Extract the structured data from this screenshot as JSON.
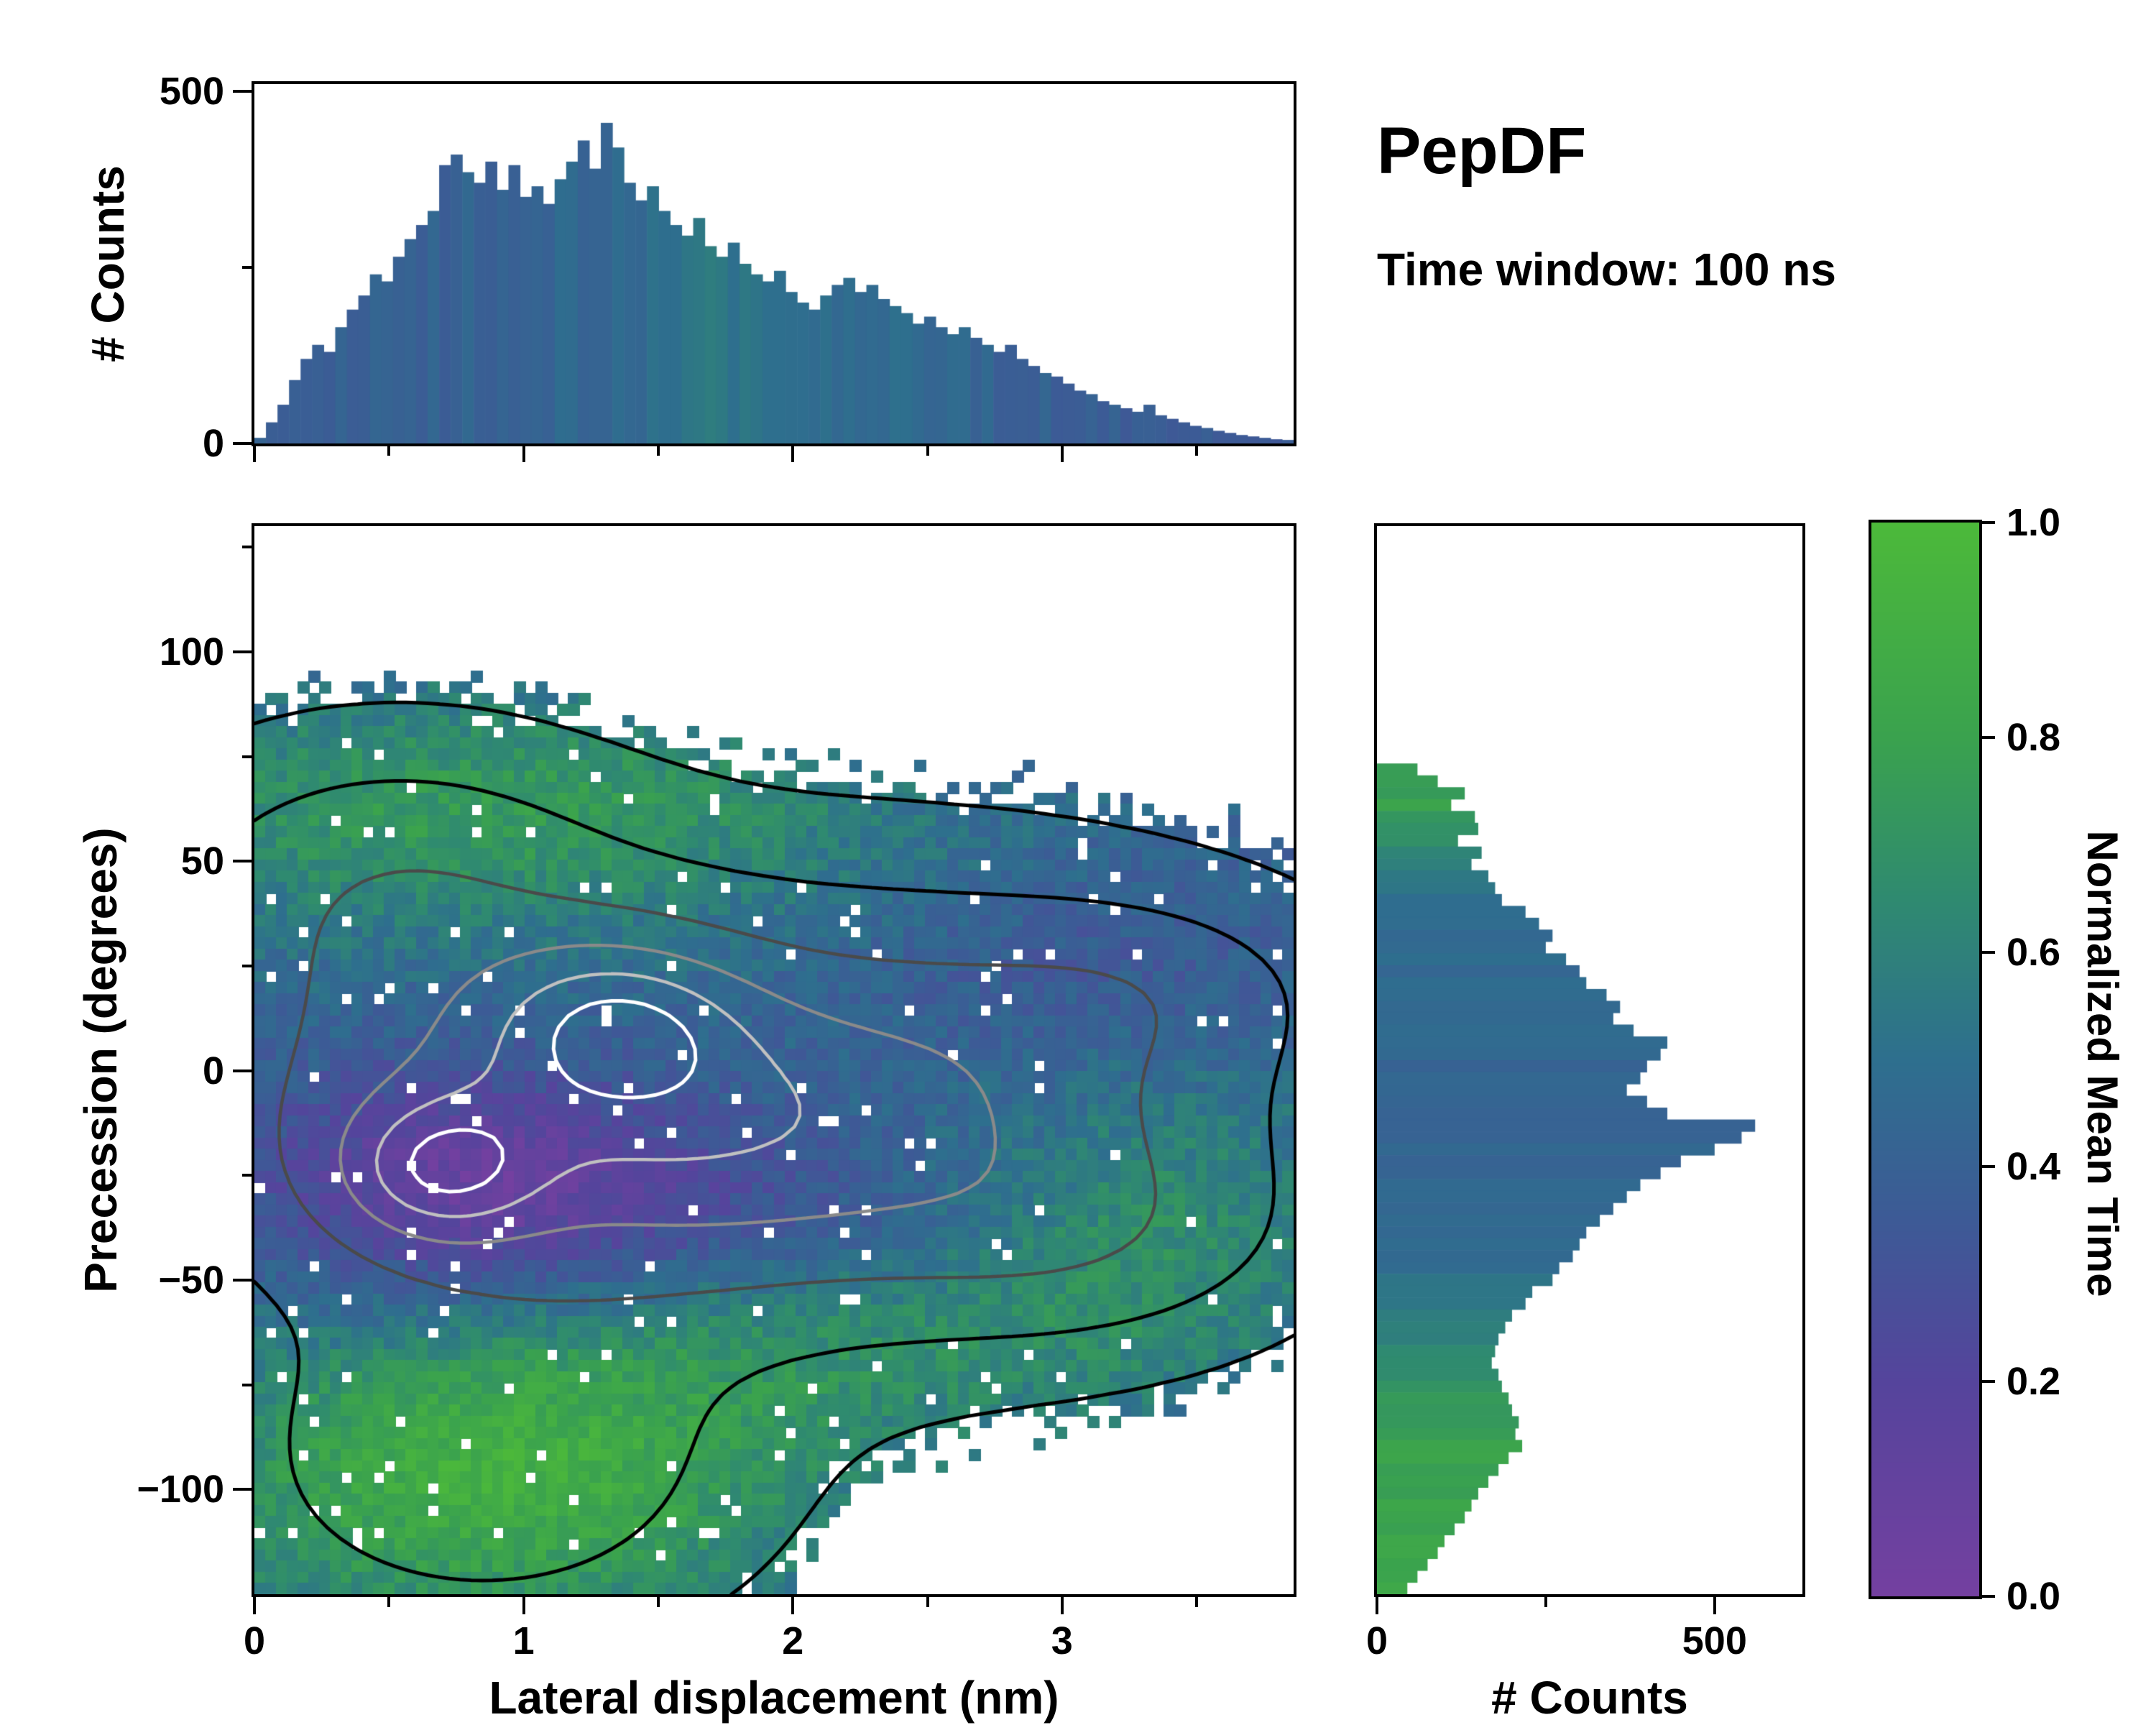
{
  "header": {
    "title": "PepDF",
    "subtitle": "Time window: 100 ns"
  },
  "panels": {
    "top_hist": {
      "ylabel": "# Counts",
      "yticks": [
        {
          "v": 500,
          "label": "500"
        },
        {
          "v": 0,
          "label": "0"
        }
      ],
      "yticks_minor": [
        250
      ],
      "xticks": [
        0,
        1,
        2,
        3
      ],
      "xticks_minor": [
        0.5,
        1.5,
        2.5,
        3.5
      ]
    },
    "main": {
      "xlabel": "Lateral displacement (nm)",
      "ylabel": "Precession (degrees)",
      "xticks": [
        {
          "v": 0,
          "label": "0"
        },
        {
          "v": 1,
          "label": "1"
        },
        {
          "v": 2,
          "label": "2"
        },
        {
          "v": 3,
          "label": "3"
        }
      ],
      "xticks_minor": [
        0.5,
        1.5,
        2.5,
        3.5
      ],
      "yticks": [
        {
          "v": 100,
          "label": "100"
        },
        {
          "v": 50,
          "label": "50"
        },
        {
          "v": 0,
          "label": "0"
        },
        {
          "v": -50,
          "label": "−50"
        },
        {
          "v": -100,
          "label": "−100"
        }
      ],
      "yticks_minor": [
        125,
        75,
        25,
        -25,
        -75
      ]
    },
    "right_hist": {
      "xlabel": "# Counts",
      "xticks": [
        {
          "v": 0,
          "label": "0"
        },
        {
          "v": 500,
          "label": "500"
        }
      ],
      "xticks_minor": [
        250
      ]
    }
  },
  "colorbar": {
    "label": "Normalized Mean Time",
    "ticks": [
      {
        "v": 0.0,
        "label": "0.0"
      },
      {
        "v": 0.2,
        "label": "0.2"
      },
      {
        "v": 0.4,
        "label": "0.4"
      },
      {
        "v": 0.6,
        "label": "0.6"
      },
      {
        "v": 0.8,
        "label": "0.8"
      },
      {
        "v": 1.0,
        "label": "1.0"
      }
    ]
  },
  "chart_data": {
    "type": "heatmap",
    "title": "PepDF",
    "subtitle": "Time window: 100 ns",
    "xlabel": "Lateral displacement (nm)",
    "ylabel": "Precession (degrees)",
    "color_label": "Normalized Mean Time",
    "x_range": [
      0,
      3.86
    ],
    "y_range": [
      -125,
      130
    ],
    "seed": 42,
    "colormap_stops": [
      [
        0.0,
        "#7440a0"
      ],
      [
        0.2,
        "#55449c"
      ],
      [
        0.35,
        "#3d5a96"
      ],
      [
        0.5,
        "#2e6f8e"
      ],
      [
        0.65,
        "#2f8a70"
      ],
      [
        0.8,
        "#3aa24e"
      ],
      [
        1.0,
        "#4cb93a"
      ]
    ],
    "top_histogram": {
      "ylim": [
        0,
        510
      ],
      "yticks": [
        0,
        500
      ],
      "values": [
        8,
        30,
        55,
        90,
        120,
        140,
        130,
        165,
        190,
        210,
        240,
        230,
        265,
        290,
        310,
        330,
        395,
        410,
        385,
        370,
        400,
        360,
        395,
        350,
        365,
        340,
        375,
        400,
        430,
        390,
        455,
        420,
        370,
        345,
        365,
        330,
        310,
        295,
        320,
        280,
        265,
        285,
        255,
        240,
        230,
        245,
        215,
        200,
        190,
        210,
        225,
        235,
        215,
        225,
        205,
        195,
        185,
        170,
        180,
        165,
        155,
        165,
        150,
        140,
        130,
        140,
        120,
        110,
        100,
        95,
        85,
        75,
        70,
        60,
        55,
        50,
        45,
        55,
        40,
        35,
        30,
        25,
        22,
        18,
        15,
        12,
        10,
        8,
        6,
        5
      ],
      "color_profile": [
        [
          0,
          0.38
        ],
        [
          0.6,
          0.4
        ],
        [
          1.0,
          0.42
        ],
        [
          1.4,
          0.48
        ],
        [
          1.8,
          0.55
        ],
        [
          2.1,
          0.5
        ],
        [
          2.5,
          0.44
        ],
        [
          3.0,
          0.4
        ],
        [
          3.86,
          0.35
        ]
      ],
      "color_noise": 0.05
    },
    "right_histogram": {
      "xlim": [
        0,
        630
      ],
      "xticks": [
        0,
        500
      ],
      "values": [
        0,
        0,
        0,
        0,
        0,
        0,
        0,
        0,
        0,
        0,
        0,
        0,
        0,
        0,
        0,
        0,
        0,
        0,
        0,
        0,
        60,
        90,
        130,
        110,
        145,
        150,
        120,
        155,
        140,
        165,
        175,
        185,
        220,
        240,
        260,
        250,
        280,
        300,
        310,
        340,
        360,
        350,
        380,
        430,
        420,
        400,
        390,
        370,
        400,
        430,
        560,
        540,
        500,
        450,
        420,
        390,
        370,
        350,
        330,
        310,
        300,
        290,
        270,
        260,
        230,
        220,
        200,
        190,
        180,
        175,
        170,
        180,
        185,
        195,
        200,
        210,
        205,
        215,
        195,
        180,
        165,
        150,
        140,
        130,
        115,
        100,
        90,
        75,
        60,
        45
      ],
      "color_profile": [
        [
          -125,
          0.82
        ],
        [
          -95,
          0.8
        ],
        [
          -80,
          0.74
        ],
        [
          -68,
          0.65
        ],
        [
          -58,
          0.55
        ],
        [
          -45,
          0.47
        ],
        [
          -20,
          0.43
        ],
        [
          0,
          0.44
        ],
        [
          20,
          0.45
        ],
        [
          40,
          0.5
        ],
        [
          52,
          0.62
        ],
        [
          62,
          0.78
        ],
        [
          130,
          0.8
        ]
      ],
      "color_noise": 0.04
    },
    "heatmap": {
      "grid": [
        96,
        96
      ],
      "value_base": 0.45,
      "fill_threshold": 0.062,
      "fill_noise": 0.03,
      "hole_fraction": 0.035,
      "value_noise": 0.09,
      "density_gaussians": [
        [
          0.92,
          1.05,
          -10,
          0.95,
          34
        ],
        [
          0.85,
          0.68,
          -24,
          0.26,
          12
        ],
        [
          0.75,
          1.35,
          12,
          0.33,
          14
        ],
        [
          0.55,
          1.9,
          -15,
          0.8,
          28
        ],
        [
          0.5,
          2.8,
          -5,
          0.75,
          32
        ],
        [
          0.45,
          0.5,
          45,
          0.55,
          22
        ],
        [
          0.55,
          0.85,
          -95,
          0.6,
          24
        ],
        [
          0.32,
          3.1,
          -40,
          0.5,
          16
        ],
        [
          0.25,
          3.3,
          20,
          0.45,
          14
        ]
      ],
      "value_terms": [
        [
          -0.36,
          0.8,
          -27,
          0.6,
          20
        ],
        [
          -0.12,
          1.9,
          -35,
          0.7,
          16
        ],
        [
          0.3,
          0.9,
          62,
          1.1,
          20
        ],
        [
          0.45,
          0.9,
          -97,
          0.8,
          26
        ],
        [
          0.18,
          2.3,
          -65,
          0.9,
          18
        ],
        [
          0.2,
          3.35,
          -35,
          0.55,
          25
        ],
        [
          -0.1,
          3.1,
          25,
          0.7,
          22
        ]
      ],
      "contour_levels": [
        0.08,
        0.3,
        0.65,
        1.05,
        1.4,
        1.7
      ],
      "contour_colors": [
        "#000000",
        "#000000",
        "#4a4a4a",
        "#8a8a8a",
        "#c0c0c0",
        "#ffffff"
      ]
    }
  }
}
